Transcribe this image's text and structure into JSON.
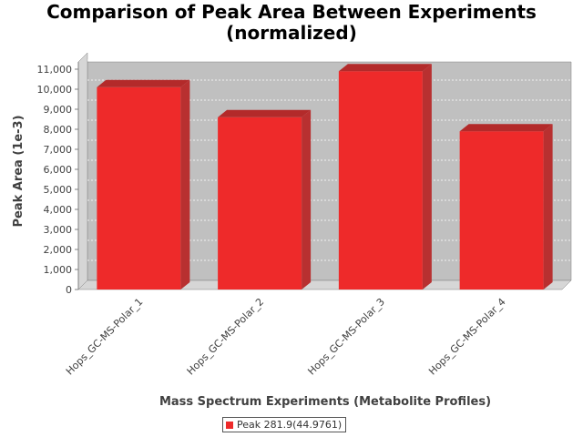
{
  "chart_data": {
    "type": "bar",
    "title_line1": "Comparison of Peak Area Between Experiments",
    "title_line2": "(normalized)",
    "xlabel": "Mass Spectrum Experiments (Metabolite Profiles)",
    "ylabel": "Peak Area (1e-3)",
    "categories": [
      "Hops_GC-MS-Polar_1",
      "Hops_GC-MS-Polar_2",
      "Hops_GC-MS-Polar_3",
      "Hops_GC-MS-Polar_4"
    ],
    "series": [
      {
        "name": "Peak 281.9(44.9761)",
        "values": [
          10100,
          8600,
          10900,
          7900
        ],
        "color": "#ee2a2a"
      }
    ],
    "yticks": [
      "0",
      "1,000",
      "2,000",
      "3,000",
      "4,000",
      "5,000",
      "6,000",
      "7,000",
      "8,000",
      "9,000",
      "10,000",
      "11,000"
    ],
    "ylim": [
      0,
      11000
    ],
    "grid": true,
    "legend_position": "bottom",
    "plot_background": "#c0c0c0"
  }
}
